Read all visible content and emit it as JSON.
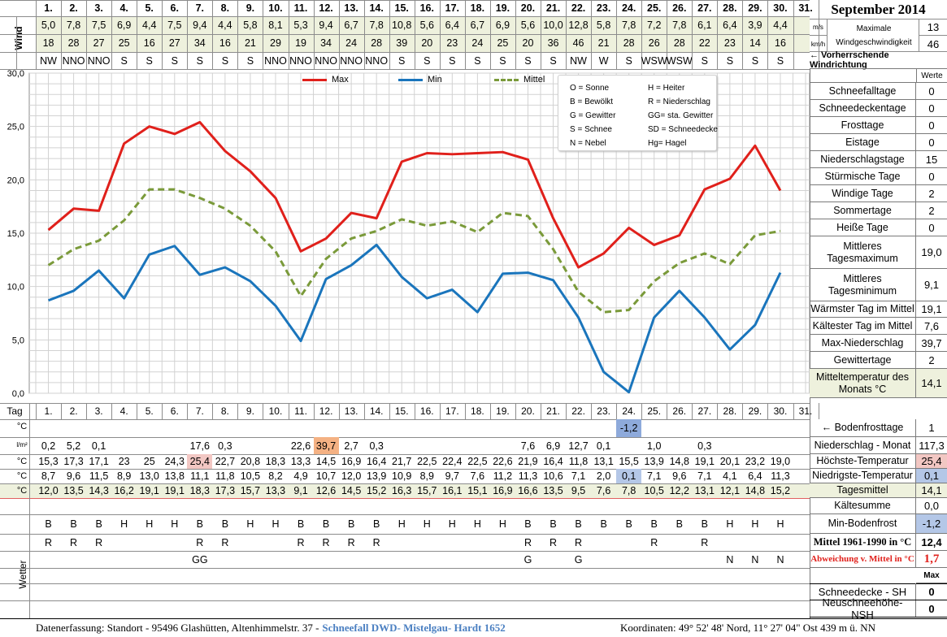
{
  "header": {
    "month_title": "September 2014",
    "days": [
      "1.",
      "2.",
      "3.",
      "4.",
      "5.",
      "6.",
      "7.",
      "8.",
      "9.",
      "10.",
      "11.",
      "12.",
      "13.",
      "14.",
      "15.",
      "16.",
      "17.",
      "18.",
      "19.",
      "20.",
      "21.",
      "22.",
      "23.",
      "24.",
      "25.",
      "26.",
      "27.",
      "28.",
      "29.",
      "30.",
      "31."
    ],
    "wind_label": "Wind",
    "unit_ms": "m/s",
    "unit_kmh": "km/h",
    "max_wind_label": "Maximale Windgeschwindigkeit",
    "max_wind_ms": "13",
    "max_wind_kmh": "46",
    "wind_dir_label": "← Vorherrschende Windrichtung",
    "wind_ms": [
      "5,0",
      "7,8",
      "7,5",
      "6,9",
      "4,4",
      "7,5",
      "9,4",
      "4,4",
      "5,8",
      "8,1",
      "5,3",
      "9,4",
      "6,7",
      "7,8",
      "10,8",
      "5,6",
      "6,4",
      "6,7",
      "6,9",
      "5,6",
      "10,0",
      "12,8",
      "5,8",
      "7,8",
      "7,2",
      "7,8",
      "6,1",
      "6,4",
      "3,9",
      "4,4",
      ""
    ],
    "wind_kmh": [
      "18",
      "28",
      "27",
      "25",
      "16",
      "27",
      "34",
      "16",
      "21",
      "29",
      "19",
      "34",
      "24",
      "28",
      "39",
      "20",
      "23",
      "24",
      "25",
      "20",
      "36",
      "46",
      "21",
      "28",
      "26",
      "28",
      "22",
      "23",
      "14",
      "16",
      ""
    ],
    "wind_dir": [
      "NW",
      "NNO",
      "NNO",
      "S",
      "S",
      "S",
      "S",
      "S",
      "S",
      "NNO",
      "NNO",
      "NNO",
      "NNO",
      "NNO",
      "S",
      "S",
      "S",
      "S",
      "S",
      "S",
      "S",
      "NW",
      "W",
      "S",
      "WSW",
      "WSW",
      "S",
      "S",
      "S",
      "S",
      ""
    ]
  },
  "chart_data": {
    "type": "line",
    "x": [
      1,
      2,
      3,
      4,
      5,
      6,
      7,
      8,
      9,
      10,
      11,
      12,
      13,
      14,
      15,
      16,
      17,
      18,
      19,
      20,
      21,
      22,
      23,
      24,
      25,
      26,
      27,
      28,
      29,
      30
    ],
    "ylim": [
      0,
      30
    ],
    "yticks": [
      "30,0",
      "25,0",
      "20,0",
      "15,0",
      "10,0",
      "5,0",
      "0,0"
    ],
    "grid": true,
    "legend_position": "top",
    "series": [
      {
        "name": "Max",
        "color": "#e0201b",
        "dash": false,
        "values": [
          15.3,
          17.3,
          17.1,
          23.4,
          25.0,
          24.3,
          25.4,
          22.7,
          20.8,
          18.3,
          13.3,
          14.5,
          16.9,
          16.4,
          21.7,
          22.5,
          22.4,
          22.5,
          22.6,
          21.9,
          16.4,
          11.8,
          13.1,
          15.5,
          13.9,
          14.8,
          19.1,
          20.1,
          23.2,
          19.0
        ]
      },
      {
        "name": "Min",
        "color": "#1a75bc",
        "dash": false,
        "values": [
          8.7,
          9.6,
          11.5,
          8.9,
          13.0,
          13.8,
          11.1,
          11.8,
          10.5,
          8.2,
          4.9,
          10.7,
          12.0,
          13.9,
          10.9,
          8.9,
          9.7,
          7.6,
          11.2,
          11.3,
          10.6,
          7.1,
          2.0,
          0.1,
          7.1,
          9.6,
          7.1,
          4.1,
          6.4,
          11.3
        ]
      },
      {
        "name": "Mittel",
        "color": "#7a9a3a",
        "dash": true,
        "values": [
          12.0,
          13.5,
          14.3,
          16.2,
          19.1,
          19.1,
          18.3,
          17.3,
          15.7,
          13.3,
          9.1,
          12.6,
          14.5,
          15.2,
          16.3,
          15.7,
          16.1,
          15.1,
          16.9,
          16.6,
          13.5,
          9.5,
          7.6,
          7.8,
          10.5,
          12.2,
          13.1,
          12.1,
          14.8,
          15.2
        ]
      }
    ]
  },
  "codes": [
    [
      "O = Sonne",
      "H = Heiter"
    ],
    [
      "B = Bewölkt",
      "R = Niederschlag"
    ],
    [
      "G = Gewitter",
      "GG= sta. Gewitter"
    ],
    [
      "S = Schnee",
      "SD = Schneedecke"
    ],
    [
      "N = Nebel",
      "Hg= Hagel"
    ]
  ],
  "right_panel": {
    "werte_label": "Werte",
    "rows": [
      {
        "label": "Schneefalltage",
        "value": "0"
      },
      {
        "label": "Schneedeckentage",
        "value": "0"
      },
      {
        "label": "Frosttage",
        "value": "0"
      },
      {
        "label": "Eistage",
        "value": "0"
      },
      {
        "label": "Niederschlagstage",
        "value": "15"
      },
      {
        "label": "Stürmische Tage",
        "value": "0"
      },
      {
        "label": "Windige Tage",
        "value": "2"
      },
      {
        "label": "Sommertage",
        "value": "2"
      },
      {
        "label": "Heiße Tage",
        "value": "0"
      },
      {
        "label": "Mittleres Tagesmaximum",
        "value": "19,0"
      },
      {
        "label": "Mittleres Tagesminimum",
        "value": "9,1"
      },
      {
        "label": "Wärmster Tag im Mittel",
        "value": "19,1"
      },
      {
        "label": "Kältester Tag im Mittel",
        "value": "7,6"
      },
      {
        "label": "Max-Niederschlag",
        "value": "39,7"
      },
      {
        "label": "Gewittertage",
        "value": "2"
      },
      {
        "label": "Mitteltemperatur des Monats °C",
        "value": "14,1"
      }
    ]
  },
  "table": {
    "tag_label": "Tag",
    "unit_c": "°C",
    "unit_lm2": "l/m²",
    "bodenfrost": [
      "",
      "",
      "",
      "",
      "",
      "",
      "",
      "",
      "",
      "",
      "",
      "",
      "",
      "",
      "",
      "",
      "",
      "",
      "",
      "",
      "",
      "",
      "",
      "-1,2",
      "",
      "",
      "",
      "",
      "",
      "",
      ""
    ],
    "niederschlag": [
      "0,2",
      "5,2",
      "0,1",
      "",
      "",
      "",
      "17,6",
      "0,3",
      "",
      "",
      "22,6",
      "39,7",
      "2,7",
      "0,3",
      "",
      "",
      "",
      "",
      "",
      "7,6",
      "6,9",
      "12,7",
      "0,1",
      "",
      "1,0",
      "",
      "0,3",
      "",
      "",
      "",
      ""
    ],
    "hoechst": [
      "15,3",
      "17,3",
      "17,1",
      "23",
      "25",
      "24,3",
      "25,4",
      "22,7",
      "20,8",
      "18,3",
      "13,3",
      "14,5",
      "16,9",
      "16,4",
      "21,7",
      "22,5",
      "22,4",
      "22,5",
      "22,6",
      "21,9",
      "16,4",
      "11,8",
      "13,1",
      "15,5",
      "13,9",
      "14,8",
      "19,1",
      "20,1",
      "23,2",
      "19,0",
      ""
    ],
    "niedrig": [
      "8,7",
      "9,6",
      "11,5",
      "8,9",
      "13,0",
      "13,8",
      "11,1",
      "11,8",
      "10,5",
      "8,2",
      "4,9",
      "10,7",
      "12,0",
      "13,9",
      "10,9",
      "8,9",
      "9,7",
      "7,6",
      "11,2",
      "11,3",
      "10,6",
      "7,1",
      "2,0",
      "0,1",
      "7,1",
      "9,6",
      "7,1",
      "4,1",
      "6,4",
      "11,3",
      ""
    ],
    "mittel": [
      "12,0",
      "13,5",
      "14,3",
      "16,2",
      "19,1",
      "19,1",
      "18,3",
      "17,3",
      "15,7",
      "13,3",
      "9,1",
      "12,6",
      "14,5",
      "15,2",
      "16,3",
      "15,7",
      "16,1",
      "15,1",
      "16,9",
      "16,6",
      "13,5",
      "9,5",
      "7,6",
      "7,8",
      "10,5",
      "12,2",
      "13,1",
      "12,1",
      "14,8",
      "15,2",
      ""
    ],
    "wetter_label": "Wetter",
    "wetter1": [
      "B",
      "B",
      "B",
      "H",
      "H",
      "H",
      "B",
      "B",
      "H",
      "H",
      "B",
      "B",
      "B",
      "B",
      "H",
      "H",
      "H",
      "H",
      "H",
      "B",
      "B",
      "B",
      "B",
      "B",
      "B",
      "B",
      "B",
      "H",
      "H",
      "H",
      ""
    ],
    "wetter2": [
      "R",
      "R",
      "R",
      "",
      "",
      "",
      "R",
      "R",
      "",
      "",
      "R",
      "R",
      "R",
      "R",
      "",
      "",
      "",
      "",
      "",
      "R",
      "R",
      "R",
      "",
      "",
      "R",
      "",
      "R",
      "",
      "",
      "",
      ""
    ],
    "wetter3": [
      "",
      "",
      "",
      "",
      "",
      "",
      "GG",
      "",
      "",
      "",
      "",
      "",
      "",
      "",
      "",
      "",
      "",
      "",
      "",
      "G",
      "",
      "G",
      "",
      "",
      "",
      "",
      "",
      "N",
      "N",
      "N",
      ""
    ]
  },
  "summary": {
    "rows": [
      {
        "label": "← Bodenfrosttage",
        "value": "1"
      },
      {
        "label": "Niederschlag - Monat",
        "value": "117,3"
      },
      {
        "label": "Höchste-Temperatur",
        "value": "25,4"
      },
      {
        "label": "Niedrigste-Temperatur",
        "value": "0,1"
      },
      {
        "label": "Tagesmittel",
        "value": "14,1"
      },
      {
        "label": "Kältesumme",
        "value": "0,0"
      },
      {
        "label": "Min-Bodenfrost",
        "value": "-1,2"
      },
      {
        "label": "Mittel 1961-1990 in °C",
        "value": "12,4"
      },
      {
        "label": "Abweichung v. Mittel in °C",
        "value": "1,7"
      }
    ],
    "max_label": "Max",
    "snow_rows": [
      {
        "label": "Schneedecke -   SH",
        "value": "0"
      },
      {
        "label": "Neuschneehöhe- NSH",
        "value": "0"
      }
    ]
  },
  "footer": {
    "left": "Datenerfassung:  Standort -   95496  Glashütten, Altenhimmelstr. 37 -",
    "link": "Schneefall DWD- Mistelgau- Hardt 1652",
    "right": "Koordinaten:  49° 52' 48' Nord,   11° 27' 04\" Ost   439 m ü. NN"
  },
  "colors": {
    "header_green": "#eef1dd",
    "highlight_orange": "#f4b183",
    "highlight_red": "#f2c7c3",
    "highlight_blue": "#b4c7e7",
    "bodenfrost_blue": "#8eaadb",
    "abweichung_red": "#e0201b"
  }
}
